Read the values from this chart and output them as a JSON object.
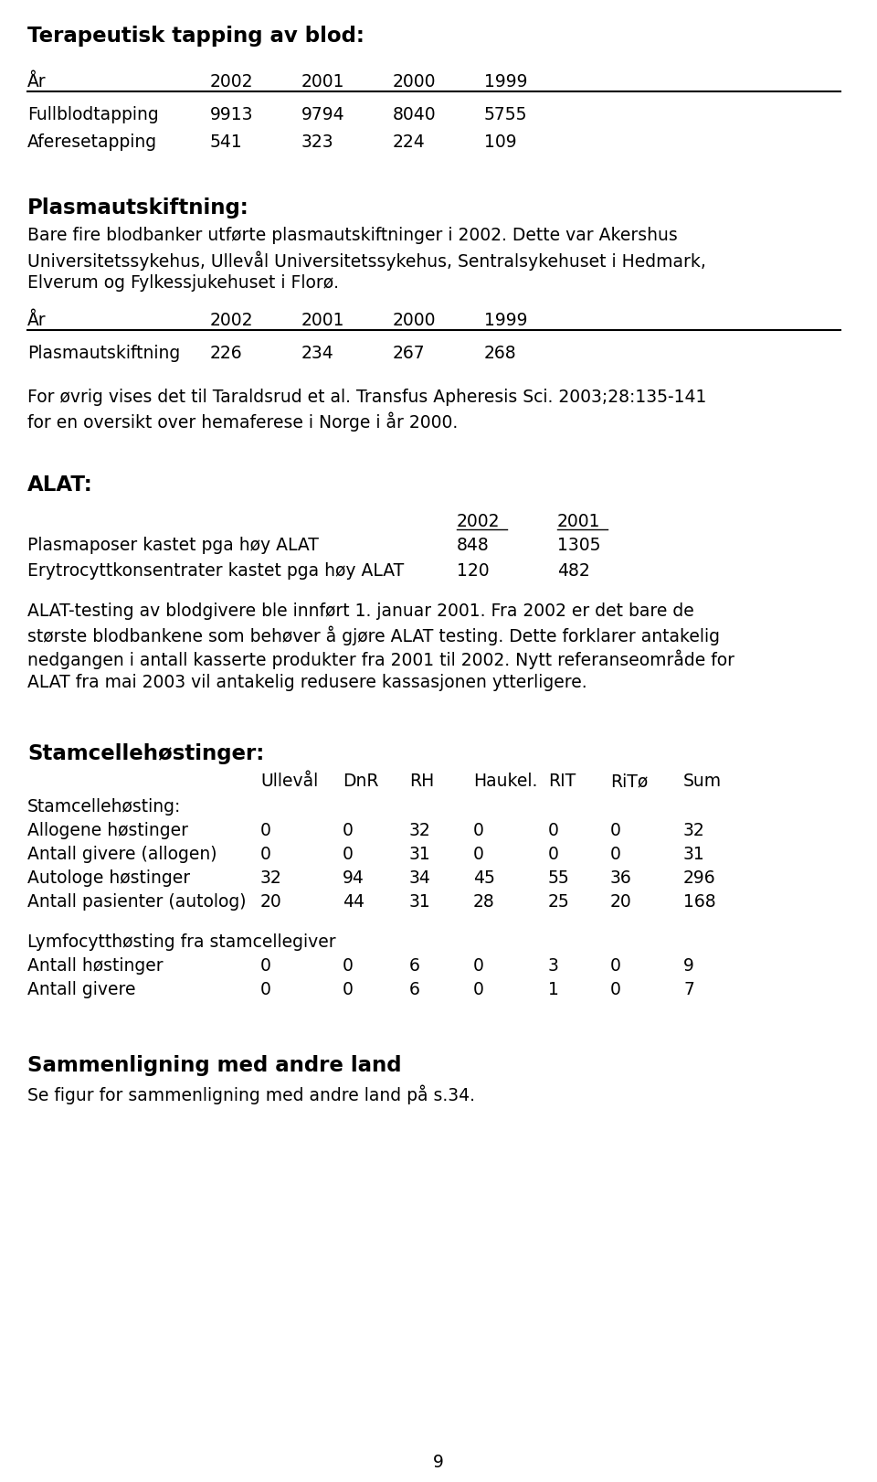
{
  "bg_color": "#ffffff",
  "title1": "Terapeutisk tapping av blod:",
  "table1_header": [
    "År",
    "2002",
    "2001",
    "2000",
    "1999"
  ],
  "table1_rows": [
    [
      "Fullblodtapping",
      "9913",
      "9794",
      "8040",
      "5755"
    ],
    [
      "Aferesetapping",
      "541",
      "323",
      "224",
      "109"
    ]
  ],
  "section2_title": "Plasmautskiftning:",
  "section2_body": "Bare fire blodbanker utførte plasmautskiftninger i 2002. Dette var Akershus\nUniversitetssykehus, Ullevål Universitetssykehus, Sentralsykehuset i Hedmark,\nElverum og Fylkessjukehuset i Florø.",
  "table2_header": [
    "År",
    "2002",
    "2001",
    "2000",
    "1999"
  ],
  "table2_rows": [
    [
      "Plasmautskiftning",
      "226",
      "234",
      "267",
      "268"
    ]
  ],
  "section2_note": "For øvrig vises det til Taraldsrud et al. Transfus Apheresis Sci. 2003;28:135-141\nfor en oversikt over hemaferese i Norge i år 2000.",
  "section3_title": "ALAT:",
  "alat_col_headers": [
    "2002",
    "2001"
  ],
  "alat_rows": [
    [
      "Plasmaposer kastet pga høy ALAT",
      "848",
      "1305"
    ],
    [
      "Erytrocyttkonsentrater kastet pga høy ALAT",
      "120",
      "482"
    ]
  ],
  "alat_body": "ALAT-testing av blodgivere ble innført 1. januar 2001. Fra 2002 er det bare de\nstørste blodbankene som behøver å gjøre ALAT testing. Dette forklarer antakelig\nnedgangen i antall kasserte produkter fra 2001 til 2002. Nytt referanseområde for\nALAT fra mai 2003 vil antakelig redusere kassasjonen ytterligere.",
  "section4_title": "Stamcellehøstinger:",
  "stem_col_headers": [
    "Ullevål",
    "DnR",
    "RH",
    "Haukel.",
    "RIT",
    "RiTø",
    "Sum"
  ],
  "stem_subheader": "Stamcellehøsting:",
  "stem_rows": [
    [
      "Allogene høstinger",
      "0",
      "0",
      "32",
      "0",
      "0",
      "0",
      "32"
    ],
    [
      "Antall givere (allogen)",
      "0",
      "0",
      "31",
      "0",
      "0",
      "0",
      "31"
    ],
    [
      "Autologe høstinger",
      "32",
      "94",
      "34",
      "45",
      "55",
      "36",
      "296"
    ],
    [
      "Antall pasienter (autolog)",
      "20",
      "44",
      "31",
      "28",
      "25",
      "20",
      "168"
    ]
  ],
  "lymp_subheader": "Lymfocytthøsting fra stamcellegiver",
  "lymp_rows": [
    [
      "Antall høstinger",
      "0",
      "0",
      "6",
      "0",
      "3",
      "0",
      "9"
    ],
    [
      "Antall givere",
      "0",
      "0",
      "6",
      "0",
      "1",
      "0",
      "7"
    ]
  ],
  "section5_title": "Sammenligning med andre land",
  "section5_body": "Se figur for sammenligning med andre land på s.34.",
  "page_number": "9",
  "fs": 13.5,
  "fs_title": 16.5
}
